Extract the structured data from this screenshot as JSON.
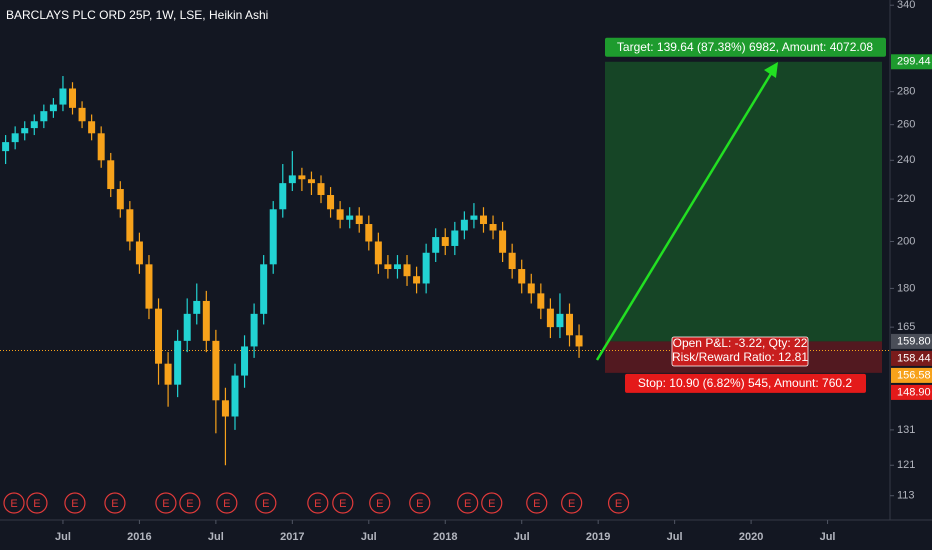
{
  "chart_data": {
    "type": "candlestick",
    "title": "BARCLAYS PLC ORD 25P, 1W, LSE, Heikin Ashi",
    "x": [
      1.5,
      2.25,
      3,
      3.75,
      4.5,
      5.25,
      6,
      6.75,
      7.5,
      8.25,
      9,
      9.75,
      10.5,
      11.25,
      12,
      12.75,
      13.5,
      14.25,
      15,
      15.75,
      16.5,
      17.25,
      18,
      18.75,
      19.5,
      20.25,
      21,
      21.75,
      22.5,
      23.25,
      24,
      24.75,
      25.5,
      26.25,
      27,
      27.75,
      28.5,
      29.25,
      30,
      30.75,
      31.5,
      32.25,
      33,
      33.75,
      34.5,
      35.25,
      36,
      36.75,
      37.5,
      38.25,
      39,
      39.75,
      40.5,
      41.25,
      42,
      42.75,
      43.5,
      44.25,
      45,
      45.75,
      46.5
    ],
    "open": [
      245,
      250,
      255,
      258,
      262,
      268,
      272,
      282,
      270,
      262,
      255,
      240,
      225,
      215,
      200,
      190,
      172,
      152,
      145,
      160,
      170,
      175,
      160,
      140,
      135,
      148,
      158,
      170,
      190,
      215,
      228,
      232,
      230,
      228,
      222,
      215,
      210,
      212,
      208,
      200,
      190,
      188,
      190,
      185,
      182,
      195,
      202,
      198,
      205,
      210,
      212,
      208,
      205,
      195,
      188,
      182,
      178,
      172,
      165,
      170,
      162
    ],
    "high": [
      254,
      259,
      262,
      266,
      272,
      276,
      290,
      286,
      274,
      266,
      259,
      244,
      229,
      219,
      204,
      194,
      176,
      156,
      164,
      176,
      182,
      179,
      164,
      144,
      152,
      162,
      174,
      194,
      219,
      238,
      245,
      236,
      234,
      232,
      226,
      219,
      216,
      216,
      212,
      204,
      194,
      194,
      194,
      189,
      199,
      206,
      206,
      209,
      214,
      218,
      216,
      212,
      209,
      199,
      192,
      186,
      182,
      176,
      178,
      174,
      166
    ],
    "low": [
      238,
      246,
      251,
      254,
      258,
      264,
      268,
      266,
      258,
      251,
      236,
      221,
      211,
      196,
      186,
      168,
      145,
      138,
      141,
      156,
      166,
      156,
      130,
      121,
      131,
      144,
      154,
      166,
      186,
      211,
      224,
      224,
      222,
      218,
      211,
      206,
      206,
      204,
      196,
      186,
      184,
      184,
      181,
      178,
      178,
      191,
      194,
      194,
      201,
      206,
      204,
      201,
      191,
      184,
      178,
      174,
      168,
      161,
      161,
      158,
      154
    ],
    "close": [
      250,
      255,
      258,
      262,
      268,
      272,
      282,
      270,
      262,
      255,
      240,
      225,
      215,
      200,
      190,
      172,
      152,
      145,
      160,
      170,
      175,
      160,
      140,
      135,
      148,
      158,
      170,
      190,
      215,
      228,
      232,
      230,
      228,
      222,
      215,
      210,
      212,
      208,
      200,
      190,
      188,
      190,
      185,
      182,
      195,
      202,
      198,
      205,
      210,
      212,
      208,
      205,
      195,
      188,
      182,
      178,
      172,
      165,
      170,
      162,
      158
    ],
    "up_color": "#22d3d3",
    "down_color": "#f7a21b",
    "log_scale": true,
    "ylim": [
      107,
      344
    ],
    "yticks": [
      340,
      280,
      260,
      240,
      220,
      200,
      180,
      165,
      131,
      121,
      113
    ],
    "xlim": [
      1.06,
      70.9
    ],
    "xticks": [
      {
        "value": 6,
        "label": "Jul"
      },
      {
        "value": 12,
        "label": "2016"
      },
      {
        "value": 18,
        "label": "Jul"
      },
      {
        "value": 24,
        "label": "2017"
      },
      {
        "value": 30,
        "label": "Jul"
      },
      {
        "value": 36,
        "label": "2018"
      },
      {
        "value": 42,
        "label": "Jul"
      },
      {
        "value": 48,
        "label": "2019"
      },
      {
        "value": 54,
        "label": "Jul"
      },
      {
        "value": 60,
        "label": "2020"
      },
      {
        "value": 66,
        "label": "Jul"
      }
    ],
    "price_badges": [
      {
        "value": 299.44,
        "label": "299.44",
        "color": "#1e9b2e"
      },
      {
        "value": 159.8,
        "label": "159.80",
        "color": "#4a4e58"
      },
      {
        "value": 158.44,
        "label": "158.44",
        "color": "#7a1c1c"
      },
      {
        "value": 156.58,
        "label": "156.58",
        "color": "#f7a21b"
      },
      {
        "value": 148.9,
        "label": "148.90",
        "color": "#e41a1a"
      }
    ],
    "position": {
      "entry": 159.8,
      "target": 299.44,
      "stop": 148.9,
      "current": 156.58,
      "target_text": "Target: 139.64 (87.38%) 6982, Amount: 4072.08",
      "pnl_text": "Open P&L: -3.22, Qty: 22",
      "rr_text": "Risk/Reward Ratio: 12.81",
      "stop_text": "Stop: 10.90 (6.82%) 545, Amount: 760.2"
    },
    "events": {
      "label": "E",
      "x": [
        2.16,
        3.96,
        6.94,
        10.08,
        14.08,
        15.96,
        18.86,
        21.92,
        26.0,
        27.96,
        30.86,
        34.0,
        37.76,
        39.65,
        43.18,
        45.92,
        49.6
      ]
    }
  }
}
